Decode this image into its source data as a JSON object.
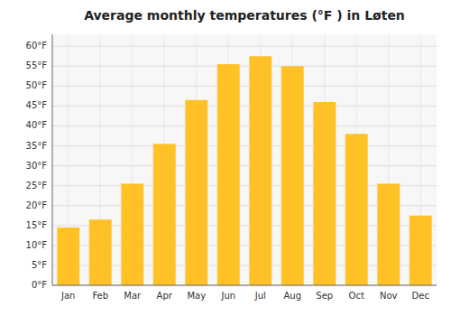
{
  "chart_data": {
    "type": "bar",
    "title": "Average monthly temperatures (°F ) in Løten",
    "categories": [
      "Jan",
      "Feb",
      "Mar",
      "Apr",
      "May",
      "Jun",
      "Jul",
      "Aug",
      "Sep",
      "Oct",
      "Nov",
      "Dec"
    ],
    "values": [
      14.5,
      16.5,
      25.5,
      35.5,
      46.5,
      55.5,
      57.5,
      55.0,
      46.0,
      38.0,
      25.5,
      17.5
    ],
    "color": "#FFC125",
    "ylim": [
      0,
      63
    ],
    "yticks": [
      {
        "value": 0,
        "label": "0°F"
      },
      {
        "value": 5,
        "label": "5°F"
      },
      {
        "value": 10,
        "label": "10°F"
      },
      {
        "value": 15,
        "label": "15°F"
      },
      {
        "value": 20,
        "label": "20°F"
      },
      {
        "value": 25,
        "label": "25°F"
      },
      {
        "value": 30,
        "label": "30°F"
      },
      {
        "value": 35,
        "label": "35°F"
      },
      {
        "value": 40,
        "label": "40°F"
      },
      {
        "value": 45,
        "label": "45°F"
      },
      {
        "value": 50,
        "label": "50°F"
      },
      {
        "value": 55,
        "label": "55°F"
      },
      {
        "value": 60,
        "label": "60°F"
      }
    ],
    "grid": true
  }
}
